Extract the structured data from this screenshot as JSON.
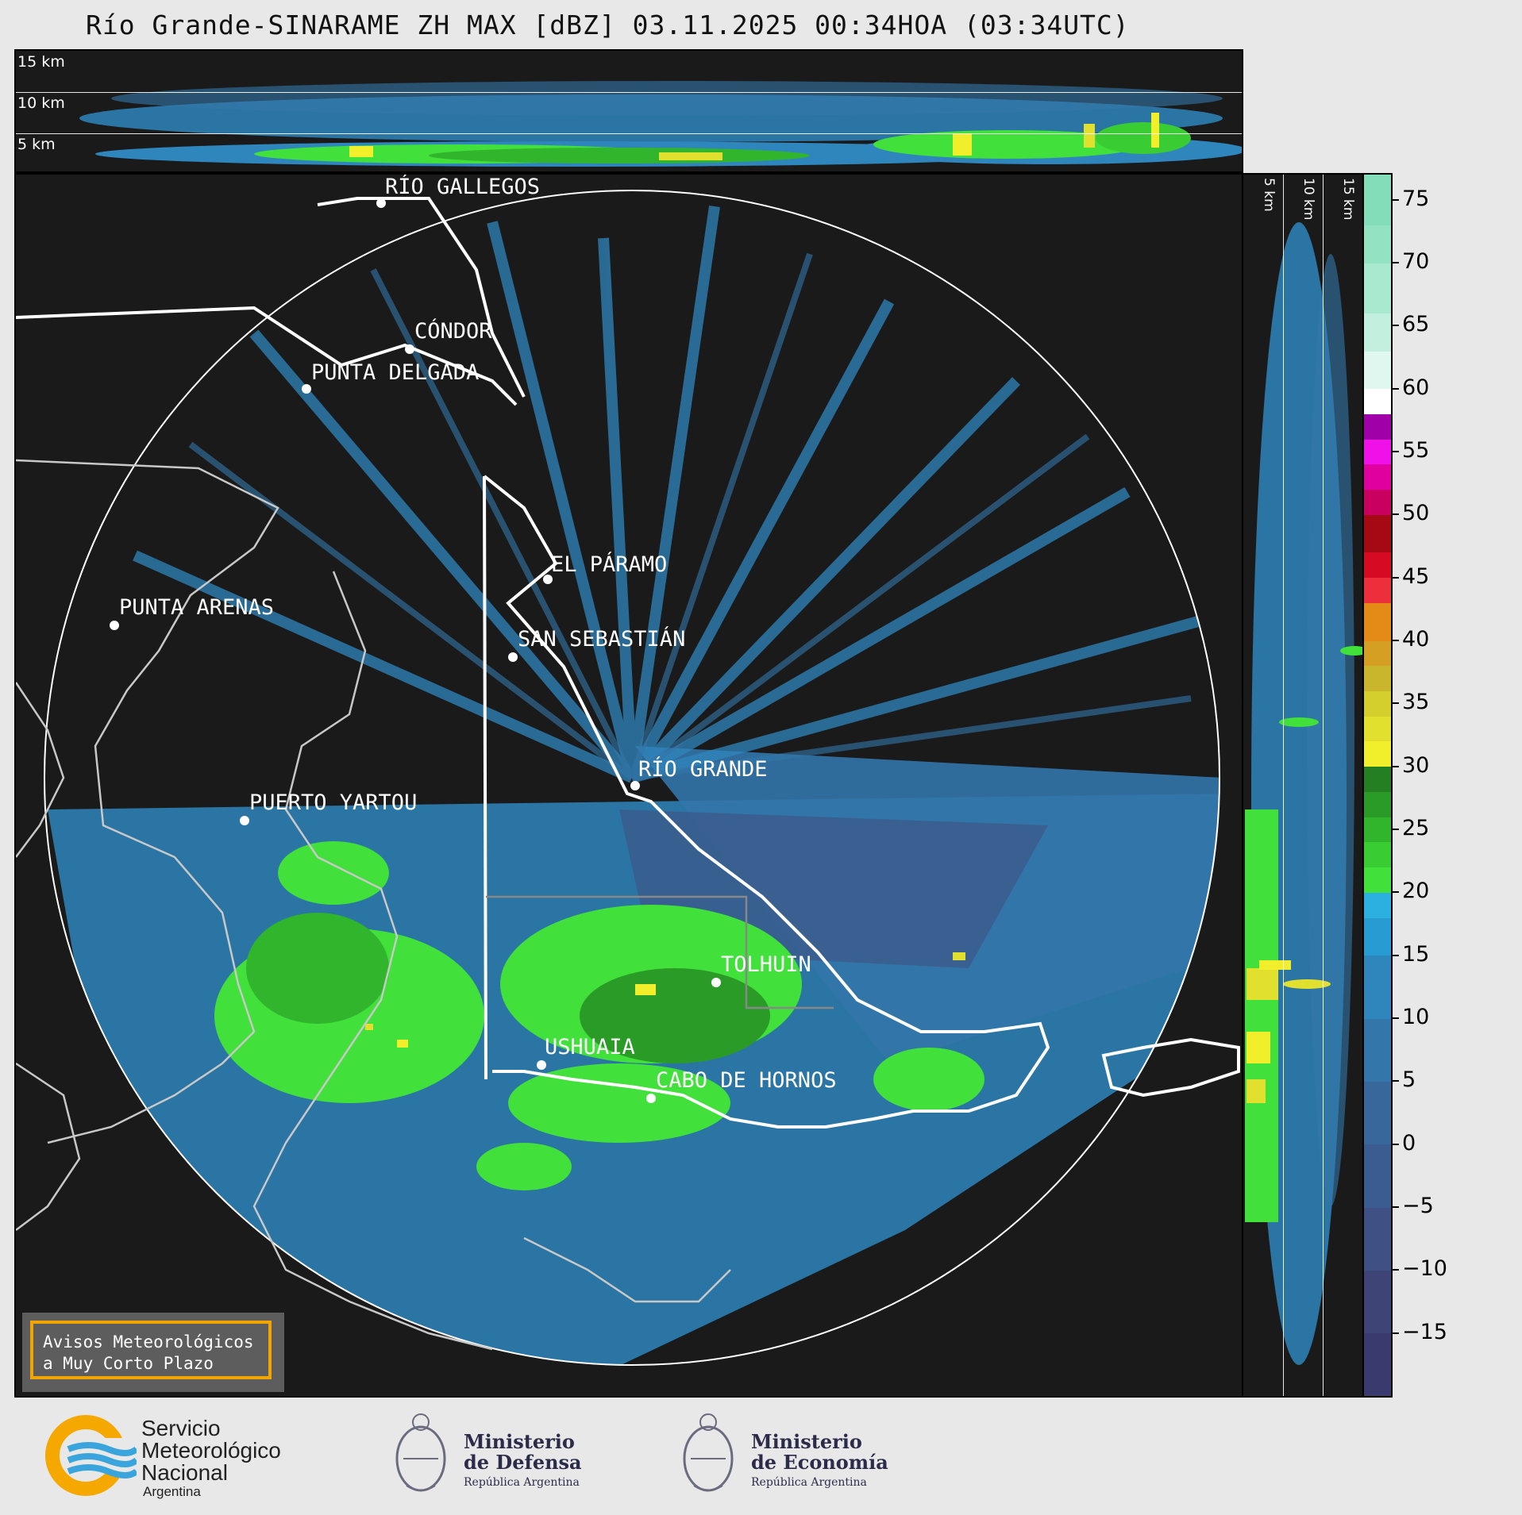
{
  "title": "Río Grande-SINARAME ZH MAX [dBZ] 03.11.2025 00:34HOA (03:34UTC)",
  "top_panel": {
    "height_labels": [
      "15 km",
      "10 km",
      "5 km"
    ]
  },
  "side_panel": {
    "height_labels": [
      "5 km",
      "10 km",
      "15 km"
    ]
  },
  "cities": [
    {
      "name": "RÍO GALLEGOS"
    },
    {
      "name": "CÓNDOR"
    },
    {
      "name": "PUNTA DELGADA"
    },
    {
      "name": "EL PÁRAMO"
    },
    {
      "name": "PUNTA ARENAS"
    },
    {
      "name": "SAN SEBASTIÁN"
    },
    {
      "name": "RÍO GRANDE"
    },
    {
      "name": "PUERTO YARTOU"
    },
    {
      "name": "TOLHUIN"
    },
    {
      "name": "USHUAIA"
    },
    {
      "name": "CABO DE HORNOS"
    }
  ],
  "warning": {
    "line1": "Avisos Meteorológicos",
    "line2": "a Muy Corto Plazo"
  },
  "colorbar": {
    "unit": "dBZ",
    "min": -20,
    "max": 77,
    "ticks": [
      "75",
      "70",
      "65",
      "60",
      "55",
      "50",
      "45",
      "40",
      "35",
      "30",
      "25",
      "20",
      "15",
      "10",
      "5",
      "0",
      "−5",
      "−10",
      "−15"
    ],
    "tick_values": [
      75,
      70,
      65,
      60,
      55,
      50,
      45,
      40,
      35,
      30,
      25,
      20,
      15,
      10,
      5,
      0,
      -5,
      -10,
      -15
    ],
    "bands": [
      {
        "from": -20,
        "to": -15,
        "color": "#3b3a6e"
      },
      {
        "from": -15,
        "to": -10,
        "color": "#3f4477"
      },
      {
        "from": -10,
        "to": -5,
        "color": "#3f5184"
      },
      {
        "from": -5,
        "to": 0,
        "color": "#3b5c90"
      },
      {
        "from": 0,
        "to": 5,
        "color": "#37679b"
      },
      {
        "from": 5,
        "to": 10,
        "color": "#3376aa"
      },
      {
        "from": 10,
        "to": 15,
        "color": "#2f86bd"
      },
      {
        "from": 15,
        "to": 18,
        "color": "#279bd2"
      },
      {
        "from": 18,
        "to": 20,
        "color": "#2bb0df"
      },
      {
        "from": 20,
        "to": 22,
        "color": "#41e03b"
      },
      {
        "from": 22,
        "to": 24,
        "color": "#39cc33"
      },
      {
        "from": 24,
        "to": 26,
        "color": "#30b52c"
      },
      {
        "from": 26,
        "to": 28,
        "color": "#2a9b27"
      },
      {
        "from": 28,
        "to": 30,
        "color": "#237f21"
      },
      {
        "from": 30,
        "to": 32,
        "color": "#f1ee2c"
      },
      {
        "from": 32,
        "to": 34,
        "color": "#e2e02e"
      },
      {
        "from": 34,
        "to": 36,
        "color": "#d4cf2d"
      },
      {
        "from": 36,
        "to": 38,
        "color": "#c9b62c"
      },
      {
        "from": 38,
        "to": 40,
        "color": "#d49f22"
      },
      {
        "from": 40,
        "to": 43,
        "color": "#e48a16"
      },
      {
        "from": 43,
        "to": 45,
        "color": "#ec2f3a"
      },
      {
        "from": 45,
        "to": 47,
        "color": "#d60a23"
      },
      {
        "from": 47,
        "to": 50,
        "color": "#a50a14"
      },
      {
        "from": 50,
        "to": 52,
        "color": "#c9005f"
      },
      {
        "from": 52,
        "to": 54,
        "color": "#e000a0"
      },
      {
        "from": 54,
        "to": 56,
        "color": "#f011e8"
      },
      {
        "from": 56,
        "to": 58,
        "color": "#a000a8"
      },
      {
        "from": 58,
        "to": 60,
        "color": "#ffffff"
      },
      {
        "from": 60,
        "to": 63,
        "color": "#dff7ee"
      },
      {
        "from": 63,
        "to": 66,
        "color": "#c3f0de"
      },
      {
        "from": 66,
        "to": 70,
        "color": "#a8e9cf"
      },
      {
        "from": 70,
        "to": 73,
        "color": "#93e3c3"
      },
      {
        "from": 73,
        "to": 77,
        "color": "#82ddb8"
      }
    ]
  },
  "footer": {
    "smn": {
      "line1": "Servicio",
      "line2": "Meteorológico",
      "line3": "Nacional",
      "sub": "Argentina"
    },
    "defensa": {
      "line1": "Ministerio",
      "line2": "de Defensa",
      "sub": "República Argentina"
    },
    "economia": {
      "line1": "Ministerio",
      "line2": "de Economía",
      "sub": "República Argentina"
    }
  }
}
